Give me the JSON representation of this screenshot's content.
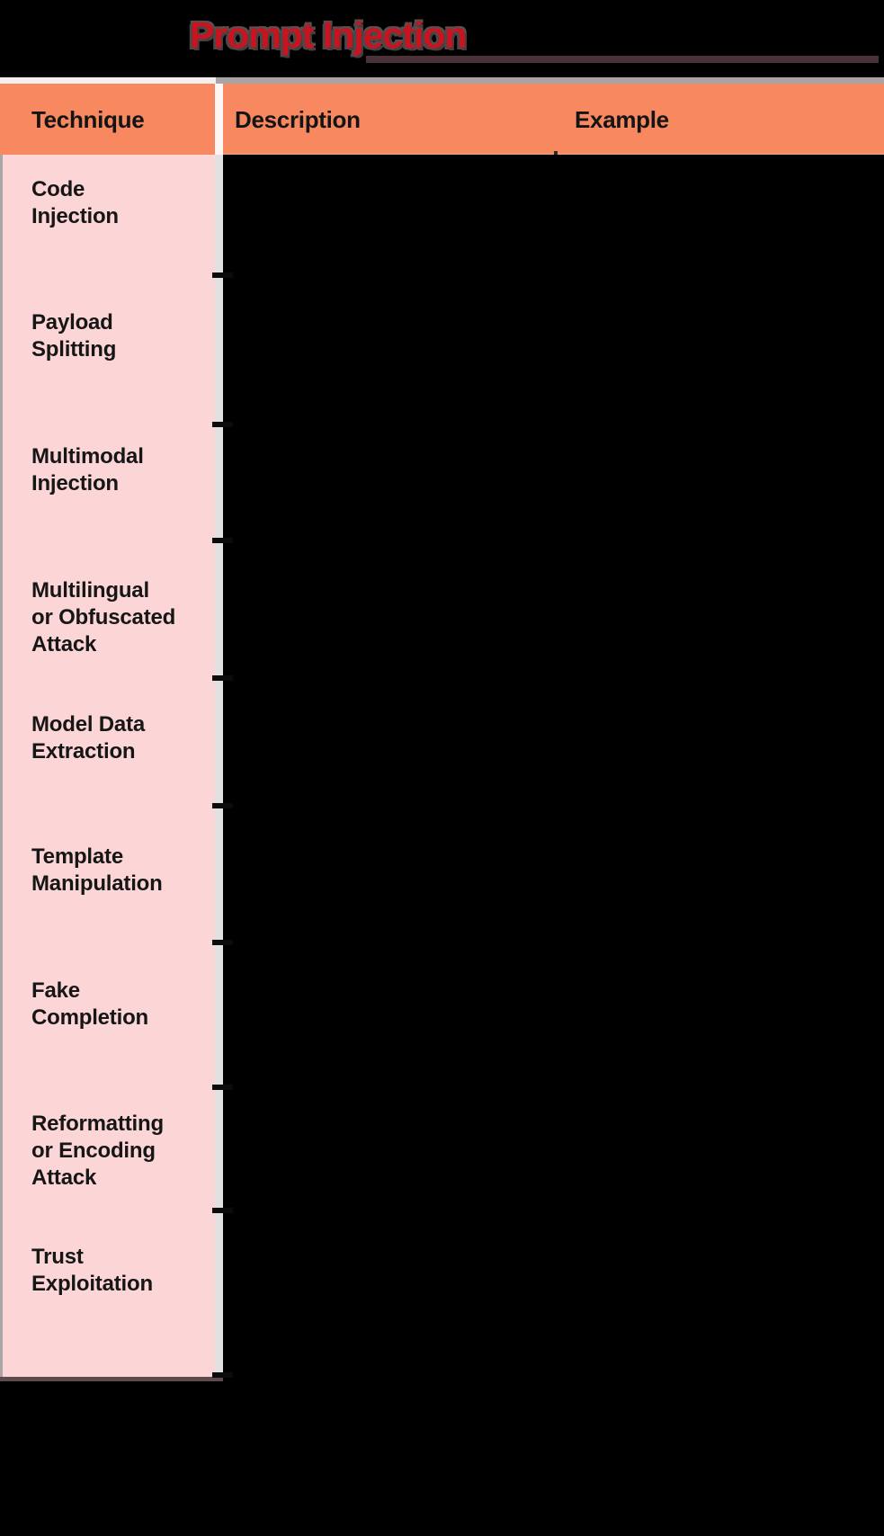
{
  "title": {
    "text": "Prompt Injection"
  },
  "table": {
    "columns": [
      "Technique",
      "Description",
      "Example"
    ],
    "rows": [
      {
        "technique": "Code\nInjection"
      },
      {
        "technique": "Payload\nSplitting"
      },
      {
        "technique": "Multimodal\nInjection"
      },
      {
        "technique": "Multilingual\nor Obfuscated\nAttack"
      },
      {
        "technique": "Model Data\nExtraction"
      },
      {
        "technique": "Template\nManipulation"
      },
      {
        "technique": "Fake\nCompletion"
      },
      {
        "technique": "Reformatting\nor Encoding\nAttack"
      },
      {
        "technique": "Trust\nExploitation"
      }
    ]
  },
  "colors": {
    "title_red": "#C9131F",
    "title_underline": "#4A3338",
    "header_orange": "#F8885F",
    "technique_column_pink": "#FCD6D7",
    "content_background": "#000000",
    "gap_gray": "#E3E0E2",
    "strip_gray": "#A9A5A7"
  }
}
